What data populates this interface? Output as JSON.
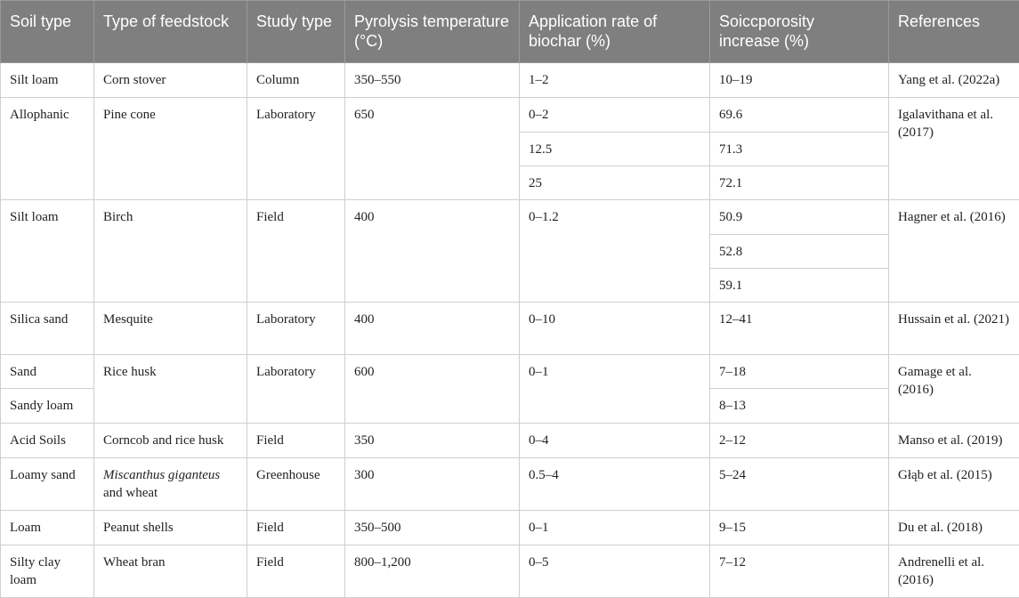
{
  "headers": {
    "soil_type": "Soil type",
    "feedstock": "Type of feedstock",
    "study_type": "Study type",
    "pyrolysis": "Pyrolysis temperature (°C)",
    "application": "Application rate of biochar (%)",
    "porosity": "Soiccporosity increase (%)",
    "references": "References"
  },
  "rows": [
    {
      "soil": "Silt loam",
      "feedstock": "Corn stover",
      "study": "Column",
      "temp": "350–550",
      "rate": "1–2",
      "porosity": "10–19",
      "ref": "Yang et al. (2022a)"
    },
    {
      "soil": "Allophanic",
      "feedstock": "Pine cone",
      "study": "Laboratory",
      "temp": "650",
      "rates": [
        "0–2",
        "12.5",
        "25"
      ],
      "porosities": [
        "69.6",
        "71.3",
        "72.1"
      ],
      "ref": "Igalavithana et al. (2017)"
    },
    {
      "soil": "Silt loam",
      "feedstock": "Birch",
      "study": "Field",
      "temp": "400",
      "rate": "0–1.2",
      "porosities": [
        "50.9",
        "52.8",
        "59.1"
      ],
      "ref": "Hagner et al. (2016)"
    },
    {
      "soil": "Silica sand",
      "feedstock": "Mesquite",
      "study": "Laboratory",
      "temp": "400",
      "rate": "0–10",
      "porosity": "12–41",
      "ref": "Hussain et al. (2021)"
    },
    {
      "soils": [
        "Sand",
        "Sandy loam"
      ],
      "feedstock": "Rice husk",
      "study": "Laboratory",
      "temp": "600",
      "rate": "0–1",
      "porosities": [
        "7–18",
        "8–13"
      ],
      "ref": "Gamage et al. (2016)"
    },
    {
      "soil": "Acid Soils",
      "feedstock": "Corncob and rice husk",
      "study": "Field",
      "temp": "350",
      "rate": "0–4",
      "porosity": "2–12",
      "ref": "Manso et al. (2019)"
    },
    {
      "soil": "Loamy sand",
      "feedstock_italic": "Miscanthus giganteus",
      "feedstock_rest": " and wheat",
      "study": "Greenhouse",
      "temp": "300",
      "rate": "0.5–4",
      "porosity": "5–24",
      "ref": "Głąb et al. (2015)"
    },
    {
      "soil": "Loam",
      "feedstock": "Peanut shells",
      "study": "Field",
      "temp": "350–500",
      "rate": "0–1",
      "porosity": "9–15",
      "ref": "Du et al. (2018)"
    },
    {
      "soil": "Silty clay loam",
      "feedstock": "Wheat bran",
      "study": "Field",
      "temp": "800–1,200",
      "rate": "0–5",
      "porosity": "7–12",
      "ref": "Andrenelli et al. (2016)"
    }
  ]
}
